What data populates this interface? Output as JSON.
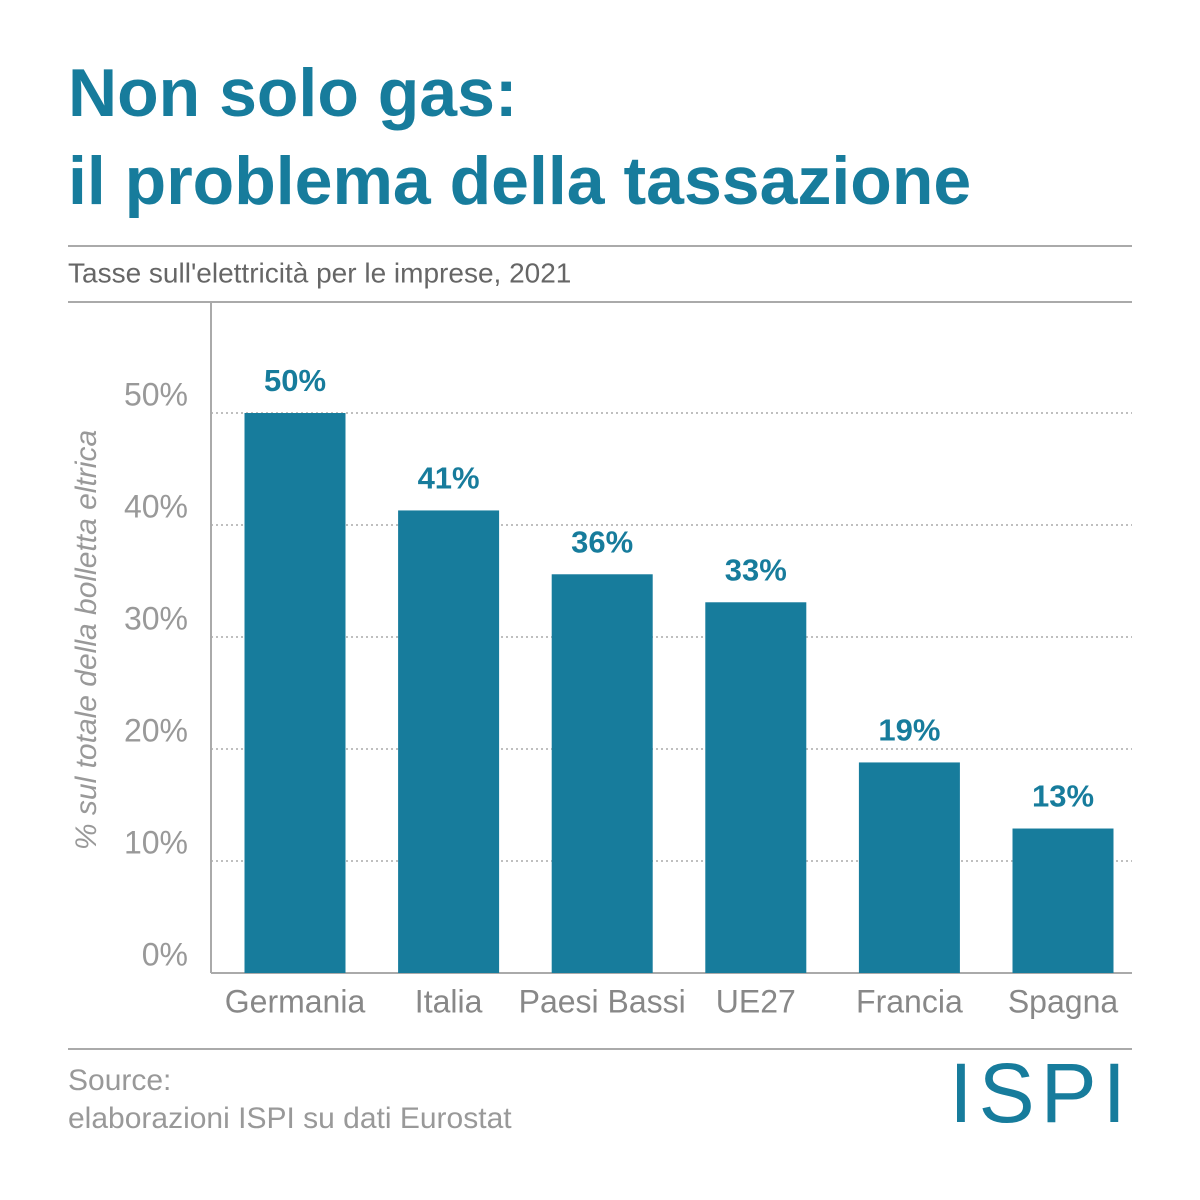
{
  "chart_data": {
    "type": "bar",
    "title": [
      "Non solo gas:",
      "il problema della tassazione"
    ],
    "subtitle": "Tasse sull'elettricità per le imprese, 2021",
    "y_label": "% sul totale della bolletta eltrica",
    "categories": [
      "Germania",
      "Italia",
      "Paesi Bassi",
      "UE27",
      "Francia",
      "Spagna"
    ],
    "values": [
      50,
      41.3,
      35.6,
      33.1,
      18.8,
      12.9
    ],
    "value_labels": [
      "50%",
      "41%",
      "36%",
      "33%",
      "19%",
      "13%"
    ],
    "color": "#177c9c",
    "ylim": [
      0,
      60
    ],
    "yticks": [
      {
        "value": 0,
        "label": "0%"
      },
      {
        "value": 10,
        "label": "10%"
      },
      {
        "value": 20,
        "label": "20%"
      },
      {
        "value": 30,
        "label": "30%"
      },
      {
        "value": 40,
        "label": "40%"
      },
      {
        "value": 50,
        "label": "50%"
      }
    ],
    "grid": true,
    "source": [
      "Source:",
      "elaborazioni ISPI su dati Eurostat"
    ],
    "logo": "ISPI"
  }
}
